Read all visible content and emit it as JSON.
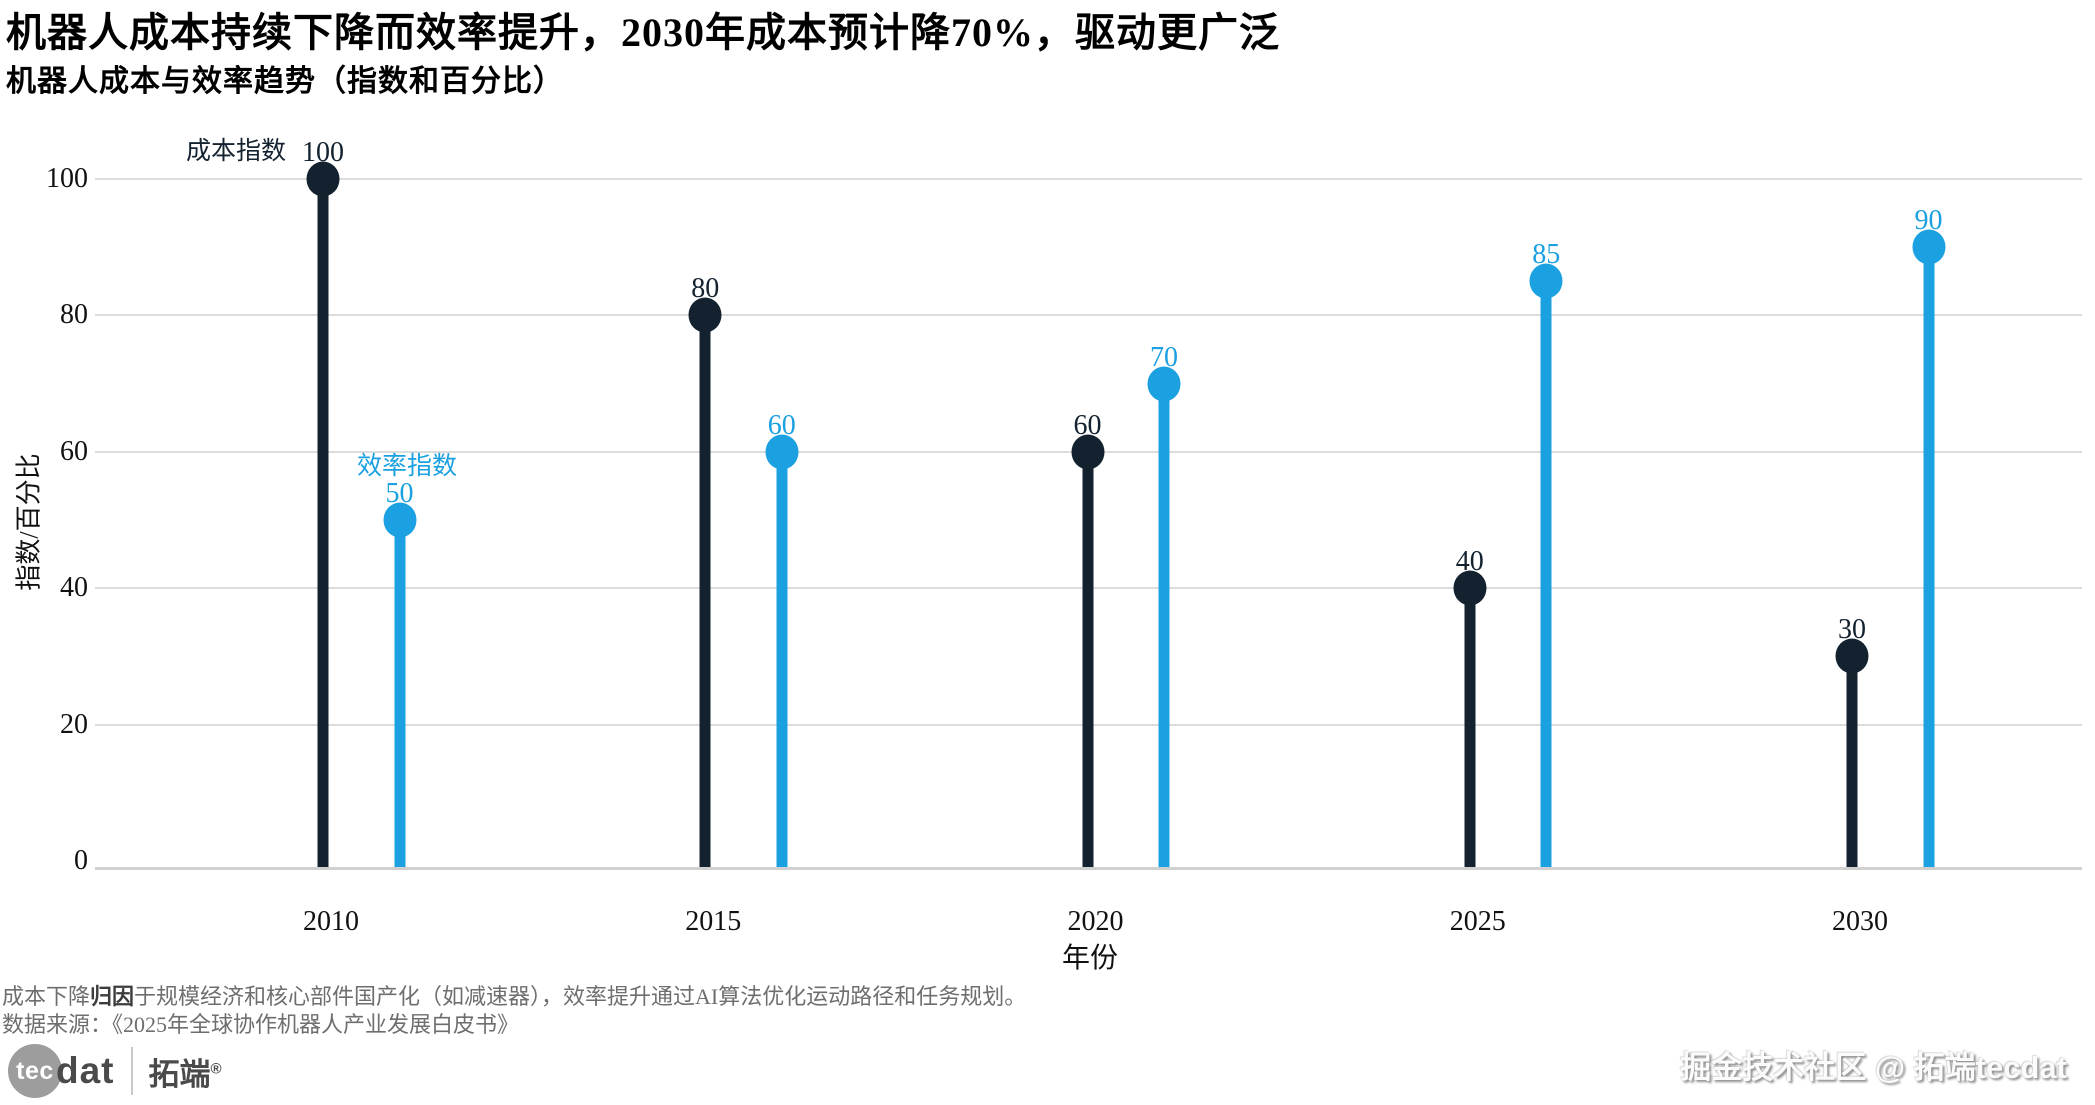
{
  "header": {
    "title": "机器人成本持续下降而效率提升，2030年成本预计降70%，驱动更广泛",
    "subtitle": "机器人成本与效率趋势（指数和百分比）"
  },
  "chart_data": {
    "type": "lollipop",
    "categories": [
      "2010",
      "2015",
      "2020",
      "2025",
      "2030"
    ],
    "series": [
      {
        "name": "成本指数",
        "values": [
          100,
          80,
          60,
          40,
          30
        ],
        "color": "#14222F"
      },
      {
        "name": "效率指数",
        "values": [
          50,
          60,
          70,
          85,
          90
        ],
        "color": "#1BA0E1"
      }
    ],
    "xlabel": "年份",
    "ylabel": "指数/百分比",
    "ylim": [
      0,
      100
    ],
    "yticks": [
      0,
      20,
      40,
      60,
      80,
      100
    ],
    "grid": true,
    "legend_position": "inline-annotations",
    "annotations": [
      {
        "text": "成本指数",
        "series": 0
      },
      {
        "text": "效率指数",
        "series": 1
      }
    ]
  },
  "footnotes": {
    "note_prefix": "成本下降",
    "note_bold": "归因",
    "note_suffix": "于规模经济和核心部件国产化（如减速器），效率提升通过AI算法优化运动路径和任务规划。",
    "source": "数据来源：《2025年全球协作机器人产业发展白皮书》"
  },
  "branding": {
    "logo_circle_text": "tec",
    "logo_text": "dat",
    "logo_cjk": "拓端",
    "logo_mark": "®",
    "watermark": "掘金技术社区 @ 拓端tecdat"
  },
  "colors": {
    "cost_series": "#14222F",
    "efficiency_series": "#1BA0E1",
    "gridline": "#dcdcdc",
    "axis_line": "#d0d0d0",
    "tick_text": "#111111",
    "footnote_text": "#6e6e6e",
    "logo_gray": "#9d9d9d"
  }
}
